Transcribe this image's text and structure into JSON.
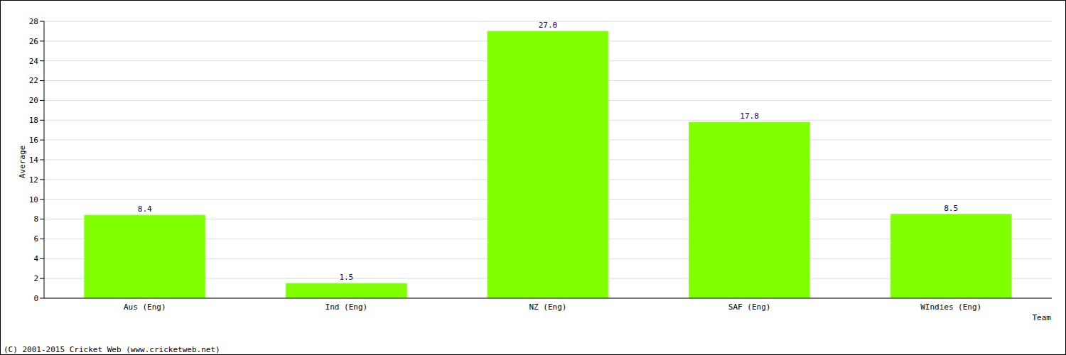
{
  "chart_data": {
    "type": "bar",
    "categories": [
      "Aus (Eng)",
      "Ind (Eng)",
      "NZ (Eng)",
      "SAF (Eng)",
      "WIndies (Eng)"
    ],
    "values": [
      8.4,
      1.5,
      27,
      17.8,
      8.5
    ],
    "value_labels": [
      "8.4",
      "1.5",
      "27.0",
      "17.8",
      "8.5"
    ],
    "color": "#7fff00",
    "ylim": [
      0,
      28
    ],
    "yticks": [
      0,
      2,
      4,
      6,
      8,
      10,
      12,
      14,
      16,
      18,
      20,
      22,
      24,
      26,
      28
    ],
    "grid": true,
    "data_labels": true,
    "x_label": "Team",
    "y_label": "Average",
    "annotations": [
      "(C) 2001-2015 Cricket Web (www.cricketweb.net)"
    ]
  }
}
